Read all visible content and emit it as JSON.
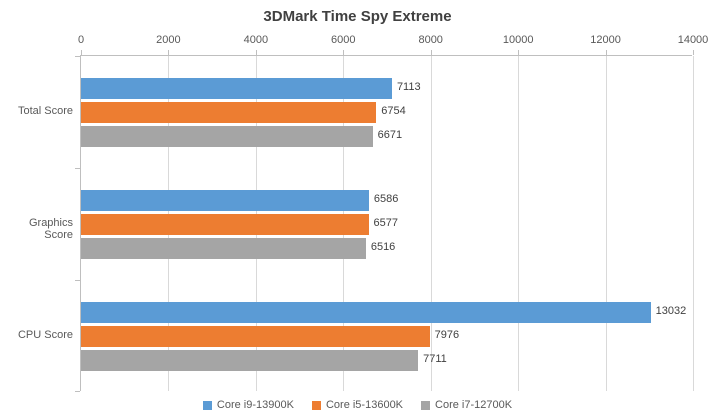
{
  "title": "3DMark Time Spy Extreme",
  "colors": {
    "title": "#404040",
    "axis_text": "#595959",
    "value_label": "#404040",
    "gridline": "#D9D9D9",
    "axis_line": "#BFBFBF",
    "background": "#FFFFFF",
    "series_blue": "#5B9BD5",
    "series_orange": "#ED7D31",
    "series_gray": "#A5A5A5"
  },
  "chart_data": {
    "type": "bar",
    "orientation": "horizontal",
    "title": "3DMark Time Spy Extreme",
    "xlabel": "",
    "ylabel": "",
    "categories": [
      "Total Score",
      "Graphics Score",
      "CPU Score"
    ],
    "series": [
      {
        "name": "Core i9-13900K",
        "color": "#5B9BD5",
        "values": [
          7113,
          6586,
          13032
        ]
      },
      {
        "name": "Core i5-13600K",
        "color": "#ED7D31",
        "values": [
          6754,
          6577,
          7976
        ]
      },
      {
        "name": "Core i7-12700K",
        "color": "#A5A5A5",
        "values": [
          6671,
          6516,
          7711
        ]
      }
    ],
    "xlim": [
      0,
      14000
    ],
    "x_ticks": [
      0,
      2000,
      4000,
      6000,
      8000,
      10000,
      12000,
      14000
    ],
    "grid": true,
    "data_labels": true,
    "axis_position": "top",
    "legend_position": "bottom"
  }
}
